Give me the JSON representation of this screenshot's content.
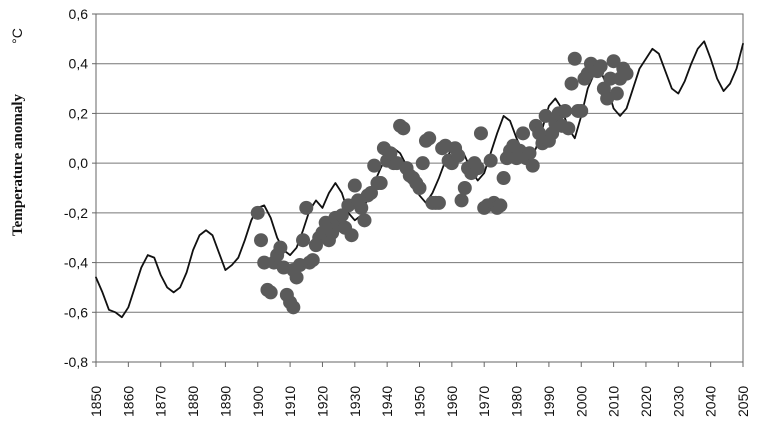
{
  "chart_data": {
    "type": "scatter",
    "ylabel": "Temperature anomaly",
    "yunit": "°C",
    "xlim": [
      1850,
      2050
    ],
    "ylim": [
      -0.8,
      0.6
    ],
    "x_ticks": [
      1850,
      1860,
      1870,
      1880,
      1890,
      1900,
      1910,
      1920,
      1930,
      1940,
      1950,
      1960,
      1970,
      1980,
      1990,
      2000,
      2010,
      2020,
      2030,
      2040,
      2050
    ],
    "y_ticks": [
      -0.8,
      -0.6,
      -0.4,
      -0.2,
      0.0,
      0.2,
      0.4,
      0.6
    ],
    "y_tick_labels": [
      "-0,8",
      "-0,6",
      "-0,4",
      "-0,2",
      "0,0",
      "0,2",
      "0,4",
      "0,6"
    ],
    "grid": "horizontal",
    "colors": {
      "line": "#111111",
      "points": "#5a5a5a",
      "grid": "#777777"
    },
    "series": [
      {
        "kind": "line",
        "x": [
          1850,
          1852,
          1854,
          1856,
          1858,
          1860,
          1862,
          1864,
          1866,
          1868,
          1870,
          1872,
          1874,
          1876,
          1878,
          1880,
          1882,
          1884,
          1886,
          1888,
          1890,
          1892,
          1894,
          1896,
          1898,
          1900,
          1902,
          1904,
          1906,
          1908,
          1910,
          1912,
          1914,
          1916,
          1918,
          1920,
          1922,
          1924,
          1926,
          1928,
          1930,
          1932,
          1934,
          1936,
          1938,
          1940,
          1942,
          1944,
          1946,
          1948,
          1950,
          1952,
          1954,
          1956,
          1958,
          1960,
          1962,
          1964,
          1966,
          1968,
          1970,
          1972,
          1974,
          1976,
          1978,
          1980,
          1982,
          1984,
          1986,
          1988,
          1990,
          1992,
          1994,
          1996,
          1998,
          2000,
          2002,
          2004,
          2006,
          2008,
          2010,
          2012,
          2014,
          2016,
          2018,
          2020,
          2022,
          2024,
          2026,
          2028,
          2030,
          2032,
          2034,
          2036,
          2038,
          2040,
          2042,
          2044,
          2046,
          2048,
          2050
        ],
        "y": [
          -0.46,
          -0.52,
          -0.59,
          -0.6,
          -0.62,
          -0.58,
          -0.5,
          -0.42,
          -0.37,
          -0.38,
          -0.45,
          -0.5,
          -0.52,
          -0.5,
          -0.44,
          -0.35,
          -0.29,
          -0.27,
          -0.29,
          -0.36,
          -0.43,
          -0.41,
          -0.38,
          -0.31,
          -0.23,
          -0.18,
          -0.17,
          -0.22,
          -0.3,
          -0.35,
          -0.37,
          -0.34,
          -0.27,
          -0.19,
          -0.15,
          -0.18,
          -0.12,
          -0.08,
          -0.12,
          -0.2,
          -0.23,
          -0.21,
          -0.14,
          -0.08,
          -0.02,
          0.03,
          0.06,
          0.04,
          -0.01,
          -0.07,
          -0.13,
          -0.16,
          -0.12,
          -0.06,
          0.01,
          0.06,
          0.07,
          0.03,
          -0.03,
          -0.07,
          -0.04,
          0.04,
          0.12,
          0.19,
          0.17,
          0.1,
          0.04,
          0.01,
          0.06,
          0.14,
          0.23,
          0.26,
          0.22,
          0.14,
          0.1,
          0.19,
          0.3,
          0.36,
          0.37,
          0.31,
          0.22,
          0.19,
          0.22,
          0.3,
          0.38,
          0.42,
          0.46,
          0.44,
          0.37,
          0.3,
          0.28,
          0.33,
          0.4,
          0.46,
          0.49,
          0.42,
          0.34,
          0.29,
          0.32,
          0.38,
          0.48
        ]
      },
      {
        "kind": "scatter",
        "points": [
          [
            1900,
            -0.2
          ],
          [
            1901,
            -0.31
          ],
          [
            1902,
            -0.4
          ],
          [
            1903,
            -0.51
          ],
          [
            1904,
            -0.52
          ],
          [
            1905,
            -0.4
          ],
          [
            1906,
            -0.37
          ],
          [
            1907,
            -0.34
          ],
          [
            1908,
            -0.42
          ],
          [
            1909,
            -0.53
          ],
          [
            1910,
            -0.56
          ],
          [
            1911,
            -0.58
          ],
          [
            1911,
            -0.43
          ],
          [
            1912,
            -0.46
          ],
          [
            1913,
            -0.41
          ],
          [
            1914,
            -0.31
          ],
          [
            1915,
            -0.18
          ],
          [
            1916,
            -0.4
          ],
          [
            1917,
            -0.39
          ],
          [
            1918,
            -0.33
          ],
          [
            1919,
            -0.3
          ],
          [
            1920,
            -0.28
          ],
          [
            1921,
            -0.24
          ],
          [
            1922,
            -0.31
          ],
          [
            1923,
            -0.28
          ],
          [
            1924,
            -0.22
          ],
          [
            1925,
            -0.25
          ],
          [
            1926,
            -0.21
          ],
          [
            1927,
            -0.26
          ],
          [
            1928,
            -0.17
          ],
          [
            1929,
            -0.29
          ],
          [
            1930,
            -0.09
          ],
          [
            1931,
            -0.15
          ],
          [
            1932,
            -0.18
          ],
          [
            1933,
            -0.23
          ],
          [
            1934,
            -0.13
          ],
          [
            1935,
            -0.12
          ],
          [
            1936,
            -0.01
          ],
          [
            1937,
            -0.08
          ],
          [
            1938,
            -0.08
          ],
          [
            1939,
            0.06
          ],
          [
            1940,
            0.01
          ],
          [
            1941,
            0.04
          ],
          [
            1942,
            0.0
          ],
          [
            1943,
            0.0
          ],
          [
            1944,
            0.15
          ],
          [
            1945,
            0.14
          ],
          [
            1946,
            -0.02
          ],
          [
            1947,
            -0.05
          ],
          [
            1948,
            -0.06
          ],
          [
            1949,
            -0.08
          ],
          [
            1950,
            -0.1
          ],
          [
            1951,
            0.0
          ],
          [
            1952,
            0.09
          ],
          [
            1953,
            0.1
          ],
          [
            1954,
            -0.16
          ],
          [
            1955,
            -0.16
          ],
          [
            1956,
            -0.16
          ],
          [
            1957,
            0.06
          ],
          [
            1958,
            0.07
          ],
          [
            1959,
            0.01
          ],
          [
            1960,
            0.0
          ],
          [
            1961,
            0.06
          ],
          [
            1962,
            0.03
          ],
          [
            1963,
            -0.15
          ],
          [
            1964,
            -0.1
          ],
          [
            1965,
            -0.02
          ],
          [
            1966,
            -0.04
          ],
          [
            1967,
            0.0
          ],
          [
            1968,
            -0.02
          ],
          [
            1969,
            0.12
          ],
          [
            1970,
            -0.18
          ],
          [
            1971,
            -0.17
          ],
          [
            1972,
            0.01
          ],
          [
            1973,
            -0.16
          ],
          [
            1974,
            -0.18
          ],
          [
            1975,
            -0.17
          ],
          [
            1976,
            -0.06
          ],
          [
            1977,
            0.02
          ],
          [
            1978,
            0.05
          ],
          [
            1979,
            0.07
          ],
          [
            1980,
            0.02
          ],
          [
            1981,
            0.05
          ],
          [
            1982,
            0.12
          ],
          [
            1983,
            0.02
          ],
          [
            1984,
            0.04
          ],
          [
            1985,
            -0.01
          ],
          [
            1986,
            0.15
          ],
          [
            1987,
            0.12
          ],
          [
            1988,
            0.08
          ],
          [
            1989,
            0.19
          ],
          [
            1990,
            0.09
          ],
          [
            1991,
            0.12
          ],
          [
            1992,
            0.16
          ],
          [
            1993,
            0.2
          ],
          [
            1994,
            0.15
          ],
          [
            1995,
            0.21
          ],
          [
            1996,
            0.14
          ],
          [
            1997,
            0.32
          ],
          [
            1998,
            0.42
          ],
          [
            1999,
            0.21
          ],
          [
            2000,
            0.21
          ],
          [
            2001,
            0.34
          ],
          [
            2002,
            0.36
          ],
          [
            2003,
            0.4
          ],
          [
            2004,
            0.38
          ],
          [
            2005,
            0.37
          ],
          [
            2006,
            0.39
          ],
          [
            2007,
            0.3
          ],
          [
            2008,
            0.26
          ],
          [
            2009,
            0.34
          ],
          [
            2010,
            0.41
          ],
          [
            2011,
            0.28
          ],
          [
            2012,
            0.34
          ],
          [
            2013,
            0.38
          ],
          [
            2014,
            0.36
          ]
        ]
      }
    ]
  }
}
